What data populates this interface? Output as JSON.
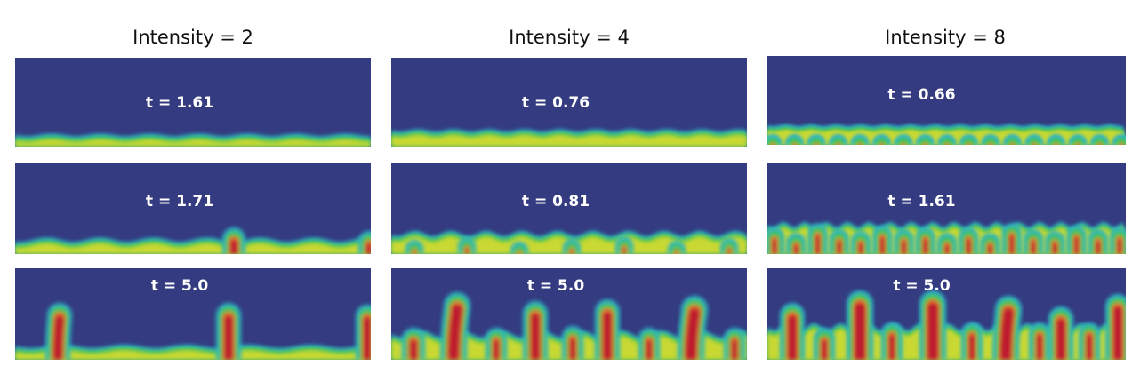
{
  "colors": {
    "background": "#343B80",
    "cyan": "#2BB3C6",
    "green": "#45C353",
    "yellow": "#C9D832",
    "orange": "#E4682C",
    "red": "#BE1E2D"
  },
  "columns": [
    {
      "title": "Intensity = 2",
      "panels": [
        {
          "time": "t = 1.61"
        },
        {
          "time": "t = 1.71"
        },
        {
          "time": "t = 5.0"
        }
      ]
    },
    {
      "title": "Intensity = 4",
      "panels": [
        {
          "time": "t = 0.76"
        },
        {
          "time": "t = 0.81"
        },
        {
          "time": "t = 5.0"
        }
      ]
    },
    {
      "title": "Intensity = 8",
      "panels": [
        {
          "time": "t = 0.66"
        },
        {
          "time": "t = 1.61"
        },
        {
          "time": "t = 5.0"
        }
      ]
    }
  ]
}
